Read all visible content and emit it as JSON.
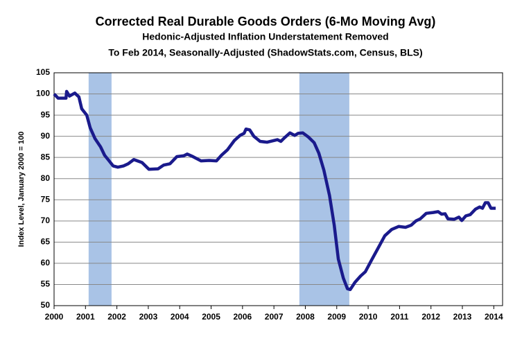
{
  "chart_data": {
    "type": "line",
    "title": "Corrected Real Durable Goods Orders (6-Mo Moving Avg)",
    "subtitle": [
      "Hedonic-Adjusted Inflation Understatement Removed",
      "To Feb 2014, Seasonally-Adjusted (ShadowStats.com, Census, BLS)"
    ],
    "y_label": "Index Level, January 2000 = 100",
    "x": [
      2000.0,
      2000.13,
      2000.38,
      2000.4,
      2000.49,
      2000.66,
      2000.79,
      2000.88,
      2001.04,
      2001.15,
      2001.3,
      2001.48,
      2001.61,
      2001.72,
      2001.88,
      2002.03,
      2002.21,
      2002.36,
      2002.54,
      2002.8,
      2003.02,
      2003.31,
      2003.49,
      2003.69,
      2003.91,
      2004.13,
      2004.24,
      2004.42,
      2004.68,
      2004.94,
      2005.17,
      2005.34,
      2005.52,
      2005.74,
      2005.92,
      2006.05,
      2006.11,
      2006.23,
      2006.36,
      2006.56,
      2006.78,
      2007.11,
      2007.22,
      2007.33,
      2007.51,
      2007.66,
      2007.77,
      2007.92,
      2008.1,
      2008.28,
      2008.43,
      2008.59,
      2008.77,
      2008.92,
      2009.05,
      2009.21,
      2009.34,
      2009.43,
      2009.58,
      2009.76,
      2009.91,
      2010.09,
      2010.31,
      2010.53,
      2010.75,
      2010.97,
      2011.19,
      2011.37,
      2011.52,
      2011.66,
      2011.85,
      2012.07,
      2012.23,
      2012.34,
      2012.45,
      2012.54,
      2012.74,
      2012.89,
      2012.98,
      2013.11,
      2013.25,
      2013.42,
      2013.55,
      2013.64,
      2013.73,
      2013.82,
      2013.91,
      2014.06
    ],
    "series": [
      {
        "name": "Corrected Real Durable Goods Orders",
        "color": "#1a1a8c",
        "values": [
          100,
          99,
          99,
          100.6,
          99.5,
          100.2,
          99.3,
          96.5,
          95,
          92,
          89.5,
          87.5,
          85.5,
          84.5,
          83,
          82.7,
          83,
          83.5,
          84.5,
          83.8,
          82.2,
          82.3,
          83.2,
          83.5,
          85.2,
          85.4,
          85.8,
          85.2,
          84.2,
          84.3,
          84.2,
          85.6,
          86.8,
          89,
          90.2,
          90.7,
          91.7,
          91.5,
          90,
          88.8,
          88.6,
          89.2,
          88.8,
          89.6,
          90.8,
          90.2,
          90.7,
          90.8,
          89.8,
          88.5,
          86,
          82,
          76,
          69,
          61,
          56.5,
          54,
          53.8,
          55.5,
          57,
          58,
          60.5,
          63.5,
          66.5,
          68,
          68.7,
          68.5,
          69,
          70,
          70.5,
          71.8,
          72,
          72.2,
          71.6,
          71.7,
          70.5,
          70.4,
          70.9,
          70.1,
          71.2,
          71.5,
          72.8,
          73.3,
          73,
          74.3,
          74.3,
          73,
          73
        ]
      }
    ],
    "shaded_periods": [
      [
        2001.1,
        2001.83
      ],
      [
        2007.81,
        2009.4
      ]
    ],
    "shade_color": "#a9c3e6",
    "xlim": [
      2000,
      2014.28
    ],
    "xticks": [
      2000,
      2001,
      2002,
      2003,
      2004,
      2005,
      2006,
      2007,
      2008,
      2009,
      2010,
      2011,
      2012,
      2013,
      2014
    ],
    "ylim": [
      50,
      105
    ],
    "yticks": [
      50,
      55,
      60,
      65,
      70,
      75,
      80,
      85,
      90,
      95,
      100,
      105
    ],
    "grid": true
  }
}
